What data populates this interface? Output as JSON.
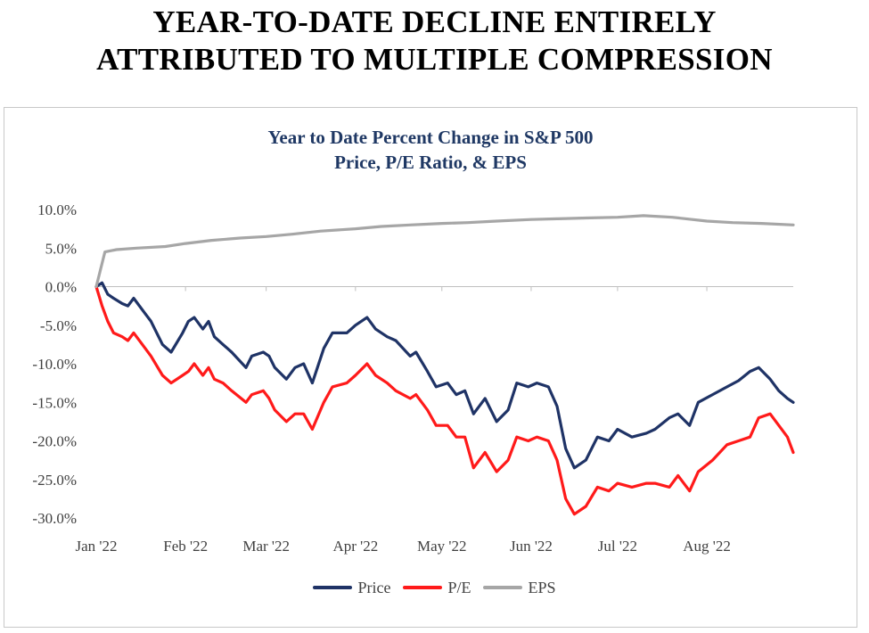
{
  "headline": {
    "line1": "YEAR-TO-DATE DECLINE ENTIRELY",
    "line2": "ATTRIBUTED TO MULTIPLE COMPRESSION"
  },
  "colors": {
    "price": "#1f3366",
    "pe": "#ff1a1a",
    "eps": "#a6a6a6",
    "title": "#1f3864"
  },
  "chart_data": {
    "type": "line",
    "title": [
      "Year to Date Percent Change in S&P 500",
      "Price, P/E Ratio, & EPS"
    ],
    "xlabel": "",
    "ylabel": "",
    "ylim": [
      -30,
      10
    ],
    "y_ticks": [
      "10.0%",
      "5.0%",
      "0.0%",
      "-5.0%",
      "-10.0%",
      "-15.0%",
      "-20.0%",
      "-25.0%",
      "-30.0%"
    ],
    "x_ticks": [
      "Jan '22",
      "Feb '22",
      "Mar '22",
      "Apr '22",
      "May '22",
      "Jun '22",
      "Jul '22",
      "Aug '22"
    ],
    "x_tick_dates": [
      "2022-01-01",
      "2022-02-01",
      "2022-03-01",
      "2022-04-01",
      "2022-05-01",
      "2022-06-01",
      "2022-07-01",
      "2022-08-01"
    ],
    "x_range": [
      "2022-01-01",
      "2022-08-31"
    ],
    "grid": false,
    "legend_position": "bottom-center",
    "series": [
      {
        "name": "Price",
        "color": "#1f3366",
        "x": [
          "2022-01-01",
          "2022-01-03",
          "2022-01-05",
          "2022-01-07",
          "2022-01-10",
          "2022-01-12",
          "2022-01-14",
          "2022-01-18",
          "2022-01-20",
          "2022-01-24",
          "2022-01-27",
          "2022-01-31",
          "2022-02-02",
          "2022-02-04",
          "2022-02-07",
          "2022-02-09",
          "2022-02-11",
          "2022-02-14",
          "2022-02-17",
          "2022-02-22",
          "2022-02-24",
          "2022-02-28",
          "2022-03-02",
          "2022-03-04",
          "2022-03-08",
          "2022-03-11",
          "2022-03-14",
          "2022-03-17",
          "2022-03-21",
          "2022-03-24",
          "2022-03-29",
          "2022-04-01",
          "2022-04-05",
          "2022-04-08",
          "2022-04-12",
          "2022-04-15",
          "2022-04-20",
          "2022-04-22",
          "2022-04-26",
          "2022-04-29",
          "2022-05-03",
          "2022-05-06",
          "2022-05-09",
          "2022-05-12",
          "2022-05-16",
          "2022-05-20",
          "2022-05-24",
          "2022-05-27",
          "2022-05-31",
          "2022-06-03",
          "2022-06-07",
          "2022-06-10",
          "2022-06-13",
          "2022-06-16",
          "2022-06-20",
          "2022-06-24",
          "2022-06-28",
          "2022-07-01",
          "2022-07-06",
          "2022-07-11",
          "2022-07-14",
          "2022-07-19",
          "2022-07-22",
          "2022-07-26",
          "2022-07-29",
          "2022-08-03",
          "2022-08-08",
          "2022-08-12",
          "2022-08-16",
          "2022-08-19",
          "2022-08-23",
          "2022-08-26",
          "2022-08-29",
          "2022-08-31"
        ],
        "y": [
          0,
          0.5,
          -1,
          -1.5,
          -2.2,
          -2.5,
          -1.5,
          -3.5,
          -4.5,
          -7.5,
          -8.5,
          -6,
          -4.5,
          -4,
          -5.5,
          -4.5,
          -6.5,
          -7.5,
          -8.5,
          -10.5,
          -9,
          -8.5,
          -9,
          -10.5,
          -12,
          -10.5,
          -10,
          -12.5,
          -8,
          -6,
          -6,
          -5,
          -4,
          -5.5,
          -6.5,
          -7,
          -9,
          -8.5,
          -11,
          -13,
          -12.5,
          -14,
          -13.5,
          -16.5,
          -14.5,
          -17.5,
          -16,
          -12.5,
          -13,
          -12.5,
          -13,
          -15.5,
          -21,
          -23.5,
          -22.5,
          -19.5,
          -20,
          -18.5,
          -19.5,
          -19,
          -18.5,
          -17,
          -16.5,
          -18,
          -15,
          -14,
          -13,
          -12.2,
          -11,
          -10.5,
          -12,
          -13.5,
          -14.5,
          -15
        ]
      },
      {
        "name": "P/E",
        "color": "#ff1a1a",
        "x": [
          "2022-01-01",
          "2022-01-03",
          "2022-01-05",
          "2022-01-07",
          "2022-01-10",
          "2022-01-12",
          "2022-01-14",
          "2022-01-18",
          "2022-01-20",
          "2022-01-24",
          "2022-01-27",
          "2022-01-31",
          "2022-02-02",
          "2022-02-04",
          "2022-02-07",
          "2022-02-09",
          "2022-02-11",
          "2022-02-14",
          "2022-02-17",
          "2022-02-22",
          "2022-02-24",
          "2022-02-28",
          "2022-03-02",
          "2022-03-04",
          "2022-03-08",
          "2022-03-11",
          "2022-03-14",
          "2022-03-17",
          "2022-03-21",
          "2022-03-24",
          "2022-03-29",
          "2022-04-01",
          "2022-04-05",
          "2022-04-08",
          "2022-04-12",
          "2022-04-15",
          "2022-04-20",
          "2022-04-22",
          "2022-04-26",
          "2022-04-29",
          "2022-05-03",
          "2022-05-06",
          "2022-05-09",
          "2022-05-12",
          "2022-05-16",
          "2022-05-20",
          "2022-05-24",
          "2022-05-27",
          "2022-05-31",
          "2022-06-03",
          "2022-06-07",
          "2022-06-10",
          "2022-06-13",
          "2022-06-16",
          "2022-06-20",
          "2022-06-24",
          "2022-06-28",
          "2022-07-01",
          "2022-07-06",
          "2022-07-11",
          "2022-07-14",
          "2022-07-19",
          "2022-07-22",
          "2022-07-26",
          "2022-07-29",
          "2022-08-03",
          "2022-08-08",
          "2022-08-12",
          "2022-08-16",
          "2022-08-19",
          "2022-08-23",
          "2022-08-26",
          "2022-08-29",
          "2022-08-31"
        ],
        "y": [
          0,
          -2.5,
          -4.5,
          -6,
          -6.5,
          -7,
          -6,
          -8,
          -9,
          -11.5,
          -12.5,
          -11.5,
          -11,
          -10,
          -11.5,
          -10.5,
          -12,
          -12.5,
          -13.5,
          -15,
          -14,
          -13.5,
          -14.5,
          -16,
          -17.5,
          -16.5,
          -16.5,
          -18.5,
          -15,
          -13,
          -12.5,
          -11.5,
          -10,
          -11.5,
          -12.5,
          -13.5,
          -14.5,
          -14,
          -16,
          -18,
          -18,
          -19.5,
          -19.5,
          -23.5,
          -21.5,
          -24,
          -22.5,
          -19.5,
          -20,
          -19.5,
          -20,
          -22.5,
          -27.5,
          -29.5,
          -28.5,
          -26,
          -26.5,
          -25.5,
          -26,
          -25.5,
          -25.5,
          -26,
          -24.5,
          -26.5,
          -24,
          -22.5,
          -20.5,
          -20,
          -19.5,
          -17,
          -16.5,
          -18,
          -19.5,
          -21.5
        ]
      },
      {
        "name": "EPS",
        "color": "#a6a6a6",
        "x": [
          "2022-01-01",
          "2022-01-04",
          "2022-01-08",
          "2022-01-15",
          "2022-01-25",
          "2022-02-01",
          "2022-02-10",
          "2022-02-20",
          "2022-03-01",
          "2022-03-10",
          "2022-03-20",
          "2022-04-01",
          "2022-04-10",
          "2022-04-20",
          "2022-05-01",
          "2022-05-10",
          "2022-05-20",
          "2022-06-01",
          "2022-06-10",
          "2022-06-20",
          "2022-07-01",
          "2022-07-10",
          "2022-07-20",
          "2022-08-01",
          "2022-08-10",
          "2022-08-20",
          "2022-08-31"
        ],
        "y": [
          0,
          4.5,
          4.8,
          5,
          5.2,
          5.6,
          6,
          6.3,
          6.5,
          6.8,
          7.2,
          7.5,
          7.8,
          8,
          8.2,
          8.3,
          8.5,
          8.7,
          8.8,
          8.9,
          9,
          9.2,
          9,
          8.5,
          8.3,
          8.2,
          8
        ]
      }
    ]
  }
}
